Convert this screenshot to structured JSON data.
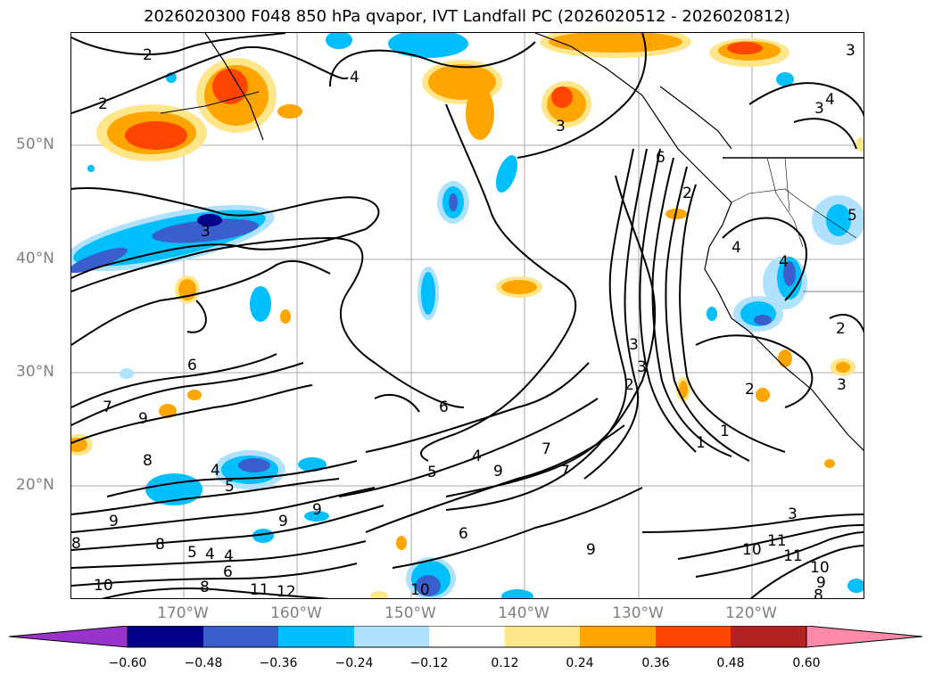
{
  "title": "2026020300 F048 850 hPa qvapor, IVT Landfall PC (2026020512 - 2026020812)",
  "lat_labels": [
    "50°N",
    "40°N",
    "30°N",
    "20°N"
  ],
  "lon_labels": [
    "170°W",
    "160°W",
    "150°W",
    "140°W",
    "130°W",
    "120°W"
  ],
  "contour_labels": [
    "2",
    "3",
    "4",
    "3",
    "4",
    "3",
    "2",
    "3",
    "6",
    "2",
    "2",
    "4",
    "4",
    "5",
    "6",
    "6",
    "7",
    "9",
    "9",
    "8",
    "4",
    "5",
    "7",
    "5",
    "4",
    "9",
    "7",
    "6",
    "8",
    "9",
    "9",
    "8",
    "5",
    "4",
    "6",
    "8",
    "10",
    "11",
    "12",
    "10",
    "9",
    "3",
    "1",
    "1",
    "2",
    "3",
    "3",
    "10",
    "11",
    "11",
    "10",
    "9",
    "8",
    "4",
    "3",
    "2"
  ],
  "colorbar": {
    "ticks": [
      "−0.60",
      "−0.48",
      "−0.36",
      "−0.24",
      "−0.12",
      "0.12",
      "0.24",
      "0.36",
      "0.48",
      "0.60"
    ],
    "colors": [
      "#9933cc",
      "#00008b",
      "#3a5fcd",
      "#00bfff",
      "#b0e2ff",
      "#ffffff",
      "#ffe68a",
      "#ffa500",
      "#ff4500",
      "#b22222",
      "#ff8aa8"
    ]
  }
}
